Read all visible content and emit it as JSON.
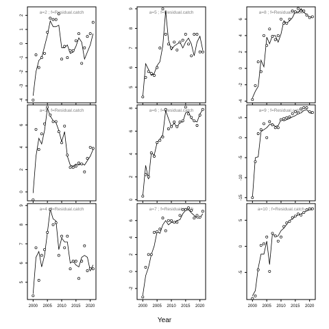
{
  "figure": {
    "xlabel": "Year"
  },
  "chart_data": [
    {
      "type": "line",
      "title": "a=2 ; f=Residual.catch",
      "xlim": [
        1998,
        2022
      ],
      "ylim": [
        -4.2,
        2.6
      ],
      "yticks": [
        -4,
        -3,
        -2,
        -1,
        0,
        1,
        2
      ],
      "yticklabels": [
        "-4",
        "-3",
        "-2",
        "-1",
        "0",
        "1",
        "2"
      ],
      "xticks": [
        2000,
        2005,
        2010,
        2015,
        2020
      ],
      "show_xticklabels": false,
      "x": [
        2000,
        2001,
        2002,
        2003,
        2004,
        2005,
        2006,
        2007,
        2008,
        2009,
        2010,
        2011,
        2012,
        2013,
        2014,
        2015,
        2016,
        2017,
        2018,
        2019,
        2020,
        2021
      ],
      "series": [
        {
          "style": "line",
          "values": [
            -3.7,
            -2.0,
            -1.2,
            -1.0,
            -0.2,
            0.6,
            1.6,
            1.2,
            1.2,
            1.3,
            -0.3,
            -0.3,
            -0.1,
            -0.7,
            -0.6,
            -0.2,
            0.4,
            0.1,
            -1.1,
            -0.6,
            -0.1,
            0.7
          ]
        },
        {
          "style": "points",
          "values": [
            -4.0,
            -0.8,
            -1.7,
            -1.0,
            -0.7,
            0.8,
            1.8,
            1.7,
            1.7,
            2.1,
            -1.1,
            -0.2,
            -1.0,
            -0.5,
            -0.5,
            0.2,
            0.7,
            -1.4,
            -0.3,
            0.5,
            0.7,
            1.5
          ]
        }
      ]
    },
    {
      "type": "line",
      "title": "a=5 ; f=Residual.catch",
      "xlim": [
        1998,
        2022
      ],
      "ylim": [
        4.2,
        9.1
      ],
      "yticks": [
        5,
        6,
        7,
        8,
        9
      ],
      "yticklabels": [
        "5",
        "6",
        "7",
        "8",
        "9"
      ],
      "xticks": [
        2000,
        2005,
        2010,
        2015,
        2020
      ],
      "show_xticklabels": false,
      "x": [
        2000,
        2001,
        2002,
        2003,
        2004,
        2005,
        2006,
        2007,
        2008,
        2009,
        2010,
        2011,
        2012,
        2013,
        2014,
        2015,
        2016,
        2017,
        2018,
        2019,
        2020,
        2021
      ],
      "series": [
        {
          "style": "line",
          "values": [
            4.5,
            6.2,
            5.9,
            5.6,
            5.7,
            6.1,
            6.3,
            7.1,
            8.9,
            7.4,
            6.9,
            7.1,
            7.2,
            7.3,
            7.0,
            7.3,
            7.5,
            7.2,
            6.6,
            7.3,
            7.6,
            6.9
          ]
        },
        {
          "style": "points",
          "values": [
            4.5,
            5.5,
            5.8,
            5.7,
            5.6,
            6.0,
            7.0,
            9.0,
            7.7,
            7.2,
            7.0,
            7.3,
            6.9,
            7.3,
            7.4,
            7.7,
            7.2,
            6.6,
            7.7,
            7.7,
            6.8,
            6.8
          ]
        }
      ]
    },
    {
      "type": "line",
      "title": "a=8 ; f=Residual.catch",
      "xlim": [
        1998,
        2022
      ],
      "ylim": [
        -4.2,
        7.5
      ],
      "yticks": [
        -4,
        -2,
        0,
        2,
        4,
        6
      ],
      "yticklabels": [
        "-4",
        "-2",
        "0",
        "2",
        "4",
        "6"
      ],
      "xticks": [
        2000,
        2005,
        2010,
        2015,
        2020
      ],
      "show_xticklabels": false,
      "x": [
        2000,
        2001,
        2002,
        2003,
        2004,
        2005,
        2006,
        2007,
        2008,
        2009,
        2010,
        2011,
        2012,
        2013,
        2014,
        2015,
        2016,
        2017,
        2018,
        2019,
        2020,
        2021
      ],
      "series": [
        {
          "style": "line",
          "values": [
            -3.6,
            -2.8,
            -2.2,
            1.0,
            0.2,
            3.8,
            3.0,
            4.0,
            4.0,
            3.2,
            4.2,
            5.8,
            5.5,
            5.8,
            6.2,
            6.9,
            6.8,
            7.3,
            6.8,
            6.6,
            6.2,
            6.3
          ]
        },
        {
          "style": "points",
          "values": [
            -3.8,
            -2.1,
            0.8,
            -0.4,
            4.0,
            2.8,
            4.8,
            3.9,
            3.5,
            4.0,
            6.0,
            5.5,
            5.5,
            6.0,
            7.0,
            6.9,
            7.3,
            7.0,
            7.0,
            6.5,
            6.2,
            6.3
          ]
        }
      ]
    },
    {
      "type": "line",
      "title": "a=3 ; f=Residual.catch",
      "xlim": [
        1998,
        2022
      ],
      "ylim": [
        -0.8,
        7.8
      ],
      "yticks": [
        0,
        2,
        4,
        6
      ],
      "yticklabels": [
        "0",
        "2",
        "4",
        "6"
      ],
      "xticks": [
        2000,
        2005,
        2010,
        2015,
        2020
      ],
      "show_xticklabels": false,
      "x": [
        2000,
        2001,
        2002,
        2003,
        2004,
        2005,
        2006,
        2007,
        2008,
        2009,
        2010,
        2011,
        2012,
        2013,
        2014,
        2015,
        2016,
        2017,
        2018,
        2019,
        2020,
        2021
      ],
      "series": [
        {
          "style": "line",
          "values": [
            -0.1,
            3.2,
            4.8,
            4.3,
            5.5,
            7.5,
            6.8,
            6.4,
            6.2,
            5.5,
            4.5,
            5.4,
            3.2,
            2.4,
            2.3,
            2.5,
            2.4,
            2.6,
            2.4,
            2.8,
            3.2,
            3.8
          ]
        },
        {
          "style": "points",
          "values": [
            -0.7,
            5.6,
            3.8,
            5.2,
            6.1,
            7.6,
            6.9,
            6.3,
            6.3,
            5.4,
            4.4,
            5.9,
            3.3,
            2.2,
            2.2,
            2.3,
            2.6,
            2.5,
            1.8,
            3.0,
            4.0,
            3.9
          ]
        }
      ]
    },
    {
      "type": "line",
      "title": "a=6 ; f=Residual.catch",
      "xlim": [
        1998,
        2022
      ],
      "ylim": [
        -0.1,
        8.3
      ],
      "yticks": [
        0,
        2,
        4,
        6,
        8
      ],
      "yticklabels": [
        "0",
        "2",
        "4",
        "6",
        "8"
      ],
      "xticks": [
        2000,
        2005,
        2010,
        2015,
        2020
      ],
      "show_xticklabels": false,
      "x": [
        2000,
        2001,
        2002,
        2003,
        2004,
        2005,
        2006,
        2007,
        2008,
        2009,
        2010,
        2011,
        2012,
        2013,
        2014,
        2015,
        2016,
        2017,
        2018,
        2019,
        2020,
        2021
      ],
      "series": [
        {
          "style": "line",
          "values": [
            0.3,
            3.0,
            1.8,
            4.1,
            3.9,
            5.0,
            5.3,
            5.7,
            7.8,
            7.1,
            6.4,
            6.7,
            6.3,
            6.8,
            6.8,
            7.6,
            7.7,
            7.1,
            6.9,
            6.8,
            7.5,
            7.9
          ]
        },
        {
          "style": "points",
          "values": [
            0.3,
            2.2,
            2.0,
            4.1,
            3.8,
            5.0,
            5.2,
            5.5,
            7.9,
            6.2,
            6.4,
            6.8,
            6.4,
            6.8,
            6.9,
            8.1,
            7.5,
            7.2,
            6.9,
            6.5,
            7.4,
            7.9
          ]
        }
      ]
    },
    {
      "type": "line",
      "title": "a=9 ; f=Residual.catch",
      "xlim": [
        1998,
        2022
      ],
      "ylim": [
        -15.8,
        8.2
      ],
      "yticks": [
        -15,
        -10,
        -5,
        0,
        5
      ],
      "yticklabels": [
        "-15",
        "-10",
        "-5",
        "0",
        "5"
      ],
      "xticks": [
        2000,
        2005,
        2010,
        2015,
        2020
      ],
      "show_xticklabels": false,
      "x": [
        2000,
        2001,
        2002,
        2003,
        2004,
        2005,
        2006,
        2007,
        2008,
        2009,
        2010,
        2011,
        2012,
        2013,
        2014,
        2015,
        2016,
        2017,
        2018,
        2019,
        2020,
        2021
      ],
      "series": [
        {
          "style": "line",
          "values": [
            -15.0,
            -5.0,
            -4.8,
            1.5,
            2.0,
            2.5,
            3.3,
            3.5,
            2.8,
            3.0,
            4.5,
            4.2,
            4.5,
            4.8,
            5.2,
            5.5,
            6.0,
            6.2,
            6.8,
            7.0,
            6.2,
            6.0
          ]
        },
        {
          "style": "points",
          "values": [
            -15.0,
            -6.0,
            1.0,
            2.0,
            3.5,
            0.0,
            4.0,
            3.2,
            2.5,
            2.5,
            4.5,
            4.8,
            5.0,
            5.2,
            6.0,
            6.5,
            6.2,
            7.2,
            7.5,
            7.5,
            6.5,
            6.3
          ]
        }
      ]
    },
    {
      "type": "line",
      "title": "a=4 ; f=Residual.catch",
      "xlim": [
        1998,
        2022
      ],
      "ylim": [
        4.1,
        9.1
      ],
      "yticks": [
        5,
        6,
        7,
        8,
        9
      ],
      "yticklabels": [
        "5",
        "6",
        "7",
        "8",
        "9"
      ],
      "xticks": [
        2000,
        2005,
        2010,
        2015,
        2020
      ],
      "xticklabels": [
        "2000",
        "2005",
        "2010",
        "2015",
        "2020"
      ],
      "show_xticklabels": true,
      "x": [
        2000,
        2001,
        2002,
        2003,
        2004,
        2005,
        2006,
        2007,
        2008,
        2009,
        2010,
        2011,
        2012,
        2013,
        2014,
        2015,
        2016,
        2017,
        2018,
        2019,
        2020,
        2021
      ],
      "series": [
        {
          "style": "line",
          "values": [
            4.4,
            6.3,
            6.6,
            5.8,
            6.4,
            7.6,
            8.8,
            8.3,
            8.2,
            6.7,
            7.3,
            7.1,
            7.1,
            6.0,
            6.1,
            5.9,
            5.8,
            6.3,
            6.4,
            6.3,
            5.6,
            5.9
          ]
        },
        {
          "style": "points",
          "values": [
            4.3,
            6.8,
            5.1,
            6.4,
            6.7,
            7.6,
            8.8,
            8.0,
            8.1,
            6.4,
            7.4,
            6.8,
            7.4,
            5.7,
            6.1,
            6.1,
            5.2,
            6.1,
            6.9,
            5.6,
            5.7,
            5.7
          ]
        }
      ]
    },
    {
      "type": "line",
      "title": "a=7 ; f=Residual.catch",
      "xlim": [
        1998,
        2022
      ],
      "ylim": [
        -3.3,
        8.0
      ],
      "yticks": [
        -2,
        0,
        2,
        4,
        6
      ],
      "yticklabels": [
        "-2",
        "0",
        "2",
        "4",
        "6"
      ],
      "xticks": [
        2000,
        2005,
        2010,
        2015,
        2020
      ],
      "xticklabels": [
        "2000",
        "2005",
        "2010",
        "2015",
        "2020"
      ],
      "show_xticklabels": true,
      "x": [
        2000,
        2001,
        2002,
        2003,
        2004,
        2005,
        2006,
        2007,
        2008,
        2009,
        2010,
        2011,
        2012,
        2013,
        2014,
        2015,
        2016,
        2017,
        2018,
        2019,
        2020,
        2021
      ],
      "series": [
        {
          "style": "line",
          "values": [
            -2.8,
            -0.5,
            0.5,
            2.0,
            3.0,
            4.7,
            4.5,
            5.5,
            6.0,
            5.5,
            5.8,
            5.8,
            6.0,
            6.1,
            6.8,
            7.2,
            7.3,
            6.9,
            6.6,
            6.3,
            6.3,
            6.8
          ]
        },
        {
          "style": "points",
          "values": [
            -3.0,
            0.5,
            2.0,
            2.0,
            4.6,
            4.7,
            5.0,
            6.3,
            4.8,
            6.0,
            6.0,
            5.8,
            5.8,
            6.6,
            7.3,
            7.3,
            7.5,
            7.2,
            6.3,
            6.6,
            6.4,
            7.1
          ]
        }
      ]
    },
    {
      "type": "line",
      "title": "a=10 ; f=Residual.catch",
      "xlim": [
        1998,
        2022
      ],
      "ylim": [
        -10.2,
        8.2
      ],
      "yticks": [
        -5,
        0,
        5
      ],
      "yticklabels": [
        "-5",
        "0",
        "5"
      ],
      "xticks": [
        2000,
        2005,
        2010,
        2015,
        2020
      ],
      "xticklabels": [
        "2000",
        "2005",
        "2010",
        "2015",
        "2020"
      ],
      "show_xticklabels": true,
      "x": [
        2000,
        2001,
        2002,
        2003,
        2004,
        2005,
        2006,
        2007,
        2008,
        2009,
        2010,
        2011,
        2012,
        2013,
        2014,
        2015,
        2016,
        2017,
        2018,
        2019,
        2020,
        2021
      ],
      "series": [
        {
          "style": "line",
          "values": [
            -9.5,
            -8.5,
            -4.2,
            -1.5,
            -1.5,
            1.0,
            -3.5,
            2.5,
            1.8,
            2.0,
            3.0,
            3.5,
            4.2,
            5.0,
            5.2,
            5.8,
            6.0,
            6.2,
            6.5,
            6.8,
            7.0,
            7.0
          ]
        },
        {
          "style": "points",
          "values": [
            -10.0,
            -9.5,
            -4.5,
            0.2,
            0.5,
            1.8,
            -4.8,
            2.5,
            2.0,
            1.0,
            1.8,
            3.8,
            4.5,
            4.8,
            5.5,
            5.8,
            6.2,
            6.0,
            6.5,
            7.0,
            7.2,
            7.2
          ]
        }
      ]
    }
  ]
}
